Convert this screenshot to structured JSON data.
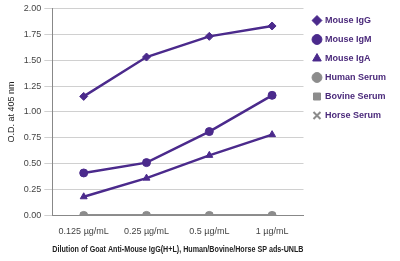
{
  "chart_data": {
    "type": "line",
    "x_label": "Dilution of Goat Anti-Mouse IgG(H+L), Human/Bovine/Horse SP ads-UNLB",
    "y_label": "O.D. at 405 nm",
    "categories": [
      "0.125 µg/mL",
      "0.25 µg/mL",
      "0.5 µg/mL",
      "1 µg/mL"
    ],
    "series": [
      {
        "name": "Mouse IgG",
        "color": "#4b2a8c",
        "marker": "diamond",
        "values": [
          1.15,
          1.53,
          1.73,
          1.83
        ]
      },
      {
        "name": "Mouse IgM",
        "color": "#4b2a8c",
        "marker": "circle",
        "values": [
          0.41,
          0.51,
          0.81,
          1.16
        ]
      },
      {
        "name": "Mouse IgA",
        "color": "#4b2a8c",
        "marker": "triangle",
        "values": [
          0.18,
          0.36,
          0.58,
          0.78
        ]
      },
      {
        "name": "Human Serum",
        "color": "#8c8c8c",
        "marker": "circle",
        "values": [
          0,
          0,
          0,
          0
        ]
      },
      {
        "name": "Bovine Serum",
        "color": "#8c8c8c",
        "marker": "square",
        "values": [
          0,
          0,
          0,
          0
        ]
      },
      {
        "name": "Horse Serum",
        "color": "#8c8c8c",
        "marker": "x",
        "values": [
          0,
          0,
          0,
          0
        ]
      }
    ],
    "ylim": [
      0,
      2
    ],
    "yticks": [
      {
        "value": 0,
        "label": "0.00"
      },
      0.25,
      {
        "value": 0.5,
        "label": "0.50"
      },
      0.75,
      {
        "value": 1,
        "label": "1.00"
      },
      1.25,
      {
        "value": 1.5,
        "label": "1.50"
      },
      1.75,
      {
        "value": 2,
        "label": "2.00"
      }
    ],
    "grid": true,
    "legend": "right"
  }
}
